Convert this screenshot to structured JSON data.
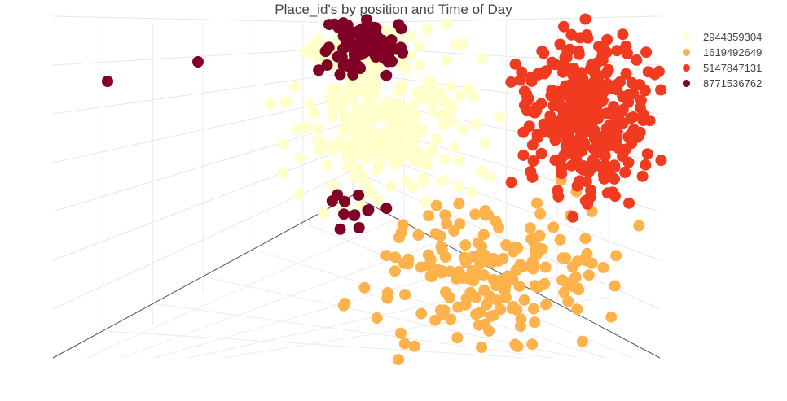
{
  "chart_data": {
    "type": "scatter",
    "title": "Place_id's by position and Time of Day",
    "legend_position": "top-right",
    "grid": true,
    "series": [
      {
        "name": "2944359304",
        "color": "#ffffcc"
      },
      {
        "name": "1619492649",
        "color": "#feb24c"
      },
      {
        "name": "5147847131",
        "color": "#f03b20"
      },
      {
        "name": "8771536762",
        "color": "#800026"
      }
    ]
  }
}
